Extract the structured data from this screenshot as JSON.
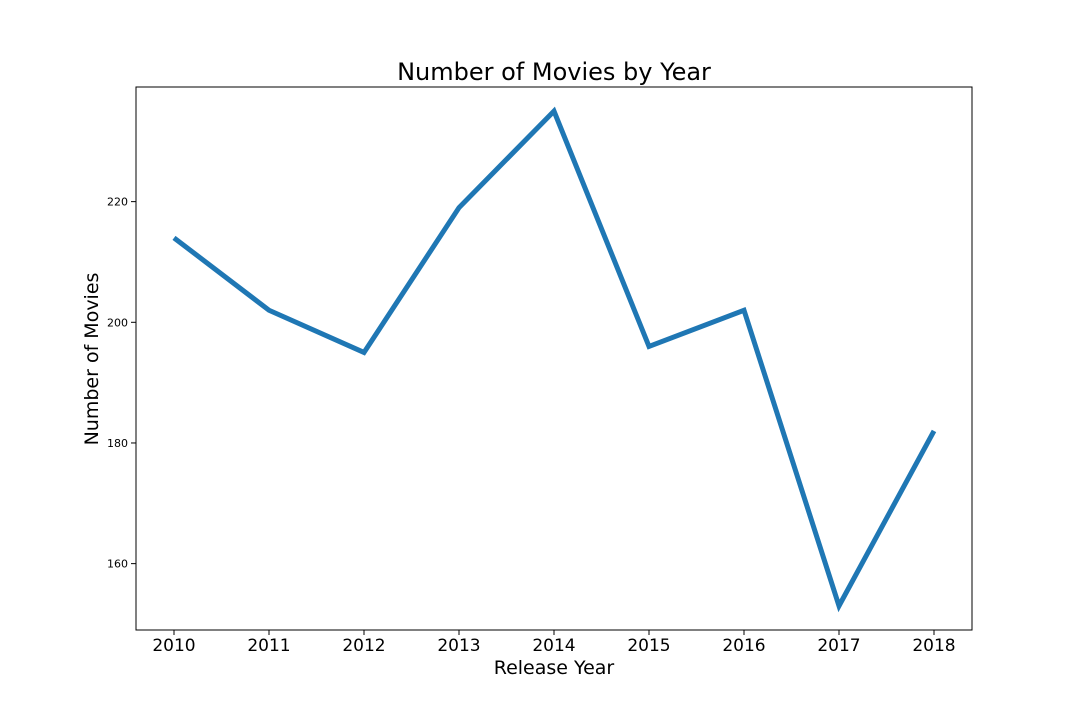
{
  "chart_data": {
    "type": "line",
    "title": "Number of Movies by Year",
    "xlabel": "Release Year",
    "ylabel": "Number of Movies",
    "x": [
      2010,
      2011,
      2012,
      2013,
      2014,
      2015,
      2016,
      2017,
      2018
    ],
    "series": [
      {
        "values": [
          214,
          202,
          195,
          219,
          235,
          196,
          202,
          153,
          182
        ]
      }
    ],
    "xlim": [
      2009.6,
      2018.4
    ],
    "ylim": [
      149,
      239
    ],
    "yticks": [
      160,
      180,
      200,
      220
    ],
    "grid": false,
    "legend": "none",
    "line_color": "#1f77b4"
  }
}
